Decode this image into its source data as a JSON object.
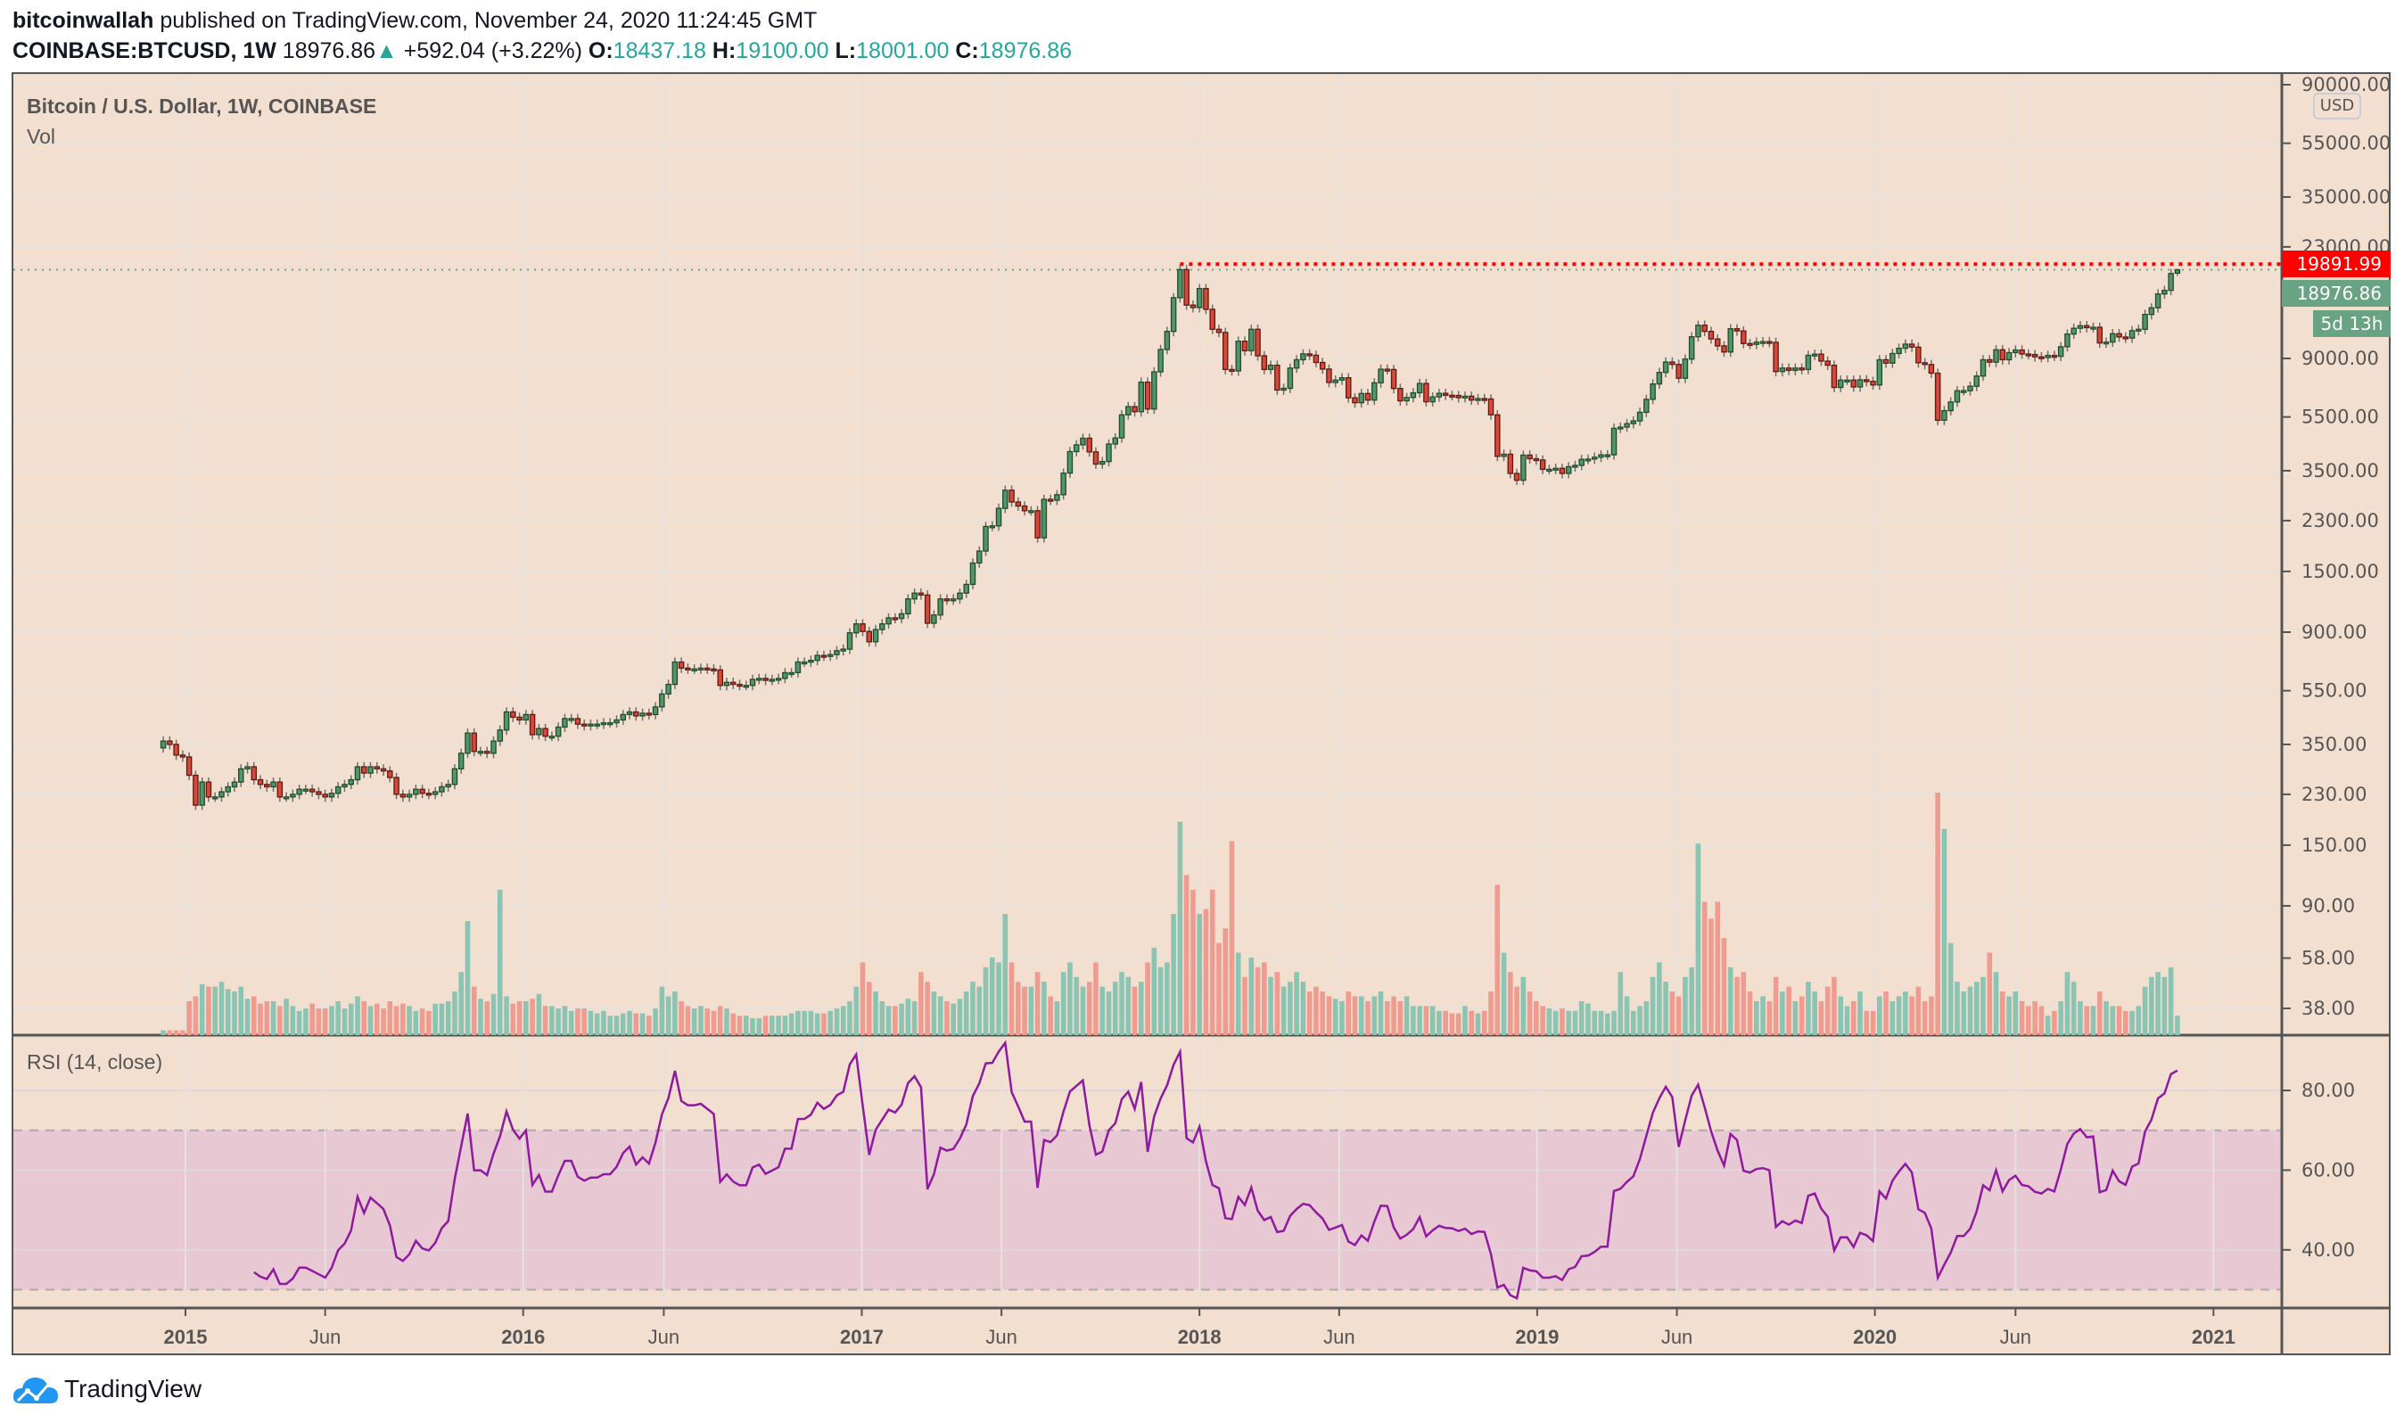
{
  "header": {
    "author": "bitcoinwallah",
    "published": "published on TradingView.com, November 24, 2020 11:24:45 GMT",
    "symbol": "COINBASE:BTCUSD, 1W",
    "last": "18976.86",
    "change": "+592.04 (+3.22%)",
    "o_label": "O:",
    "o": "18437.18",
    "h_label": "H:",
    "h": "19100.00",
    "l_label": "L:",
    "l": "18001.00",
    "c_label": "C:",
    "c": "18976.86"
  },
  "legend": {
    "title": "Bitcoin / U.S. Dollar, 1W, COINBASE",
    "volume": "Vol",
    "rsi": "RSI (14, close)"
  },
  "price_axis": {
    "currency": "USD",
    "ath_label": "19891.99",
    "last_label": "18976.86",
    "countdown": "5d 13h"
  },
  "footer": {
    "brand": "TradingView"
  },
  "colors": {
    "background": "#f2dfcf",
    "up": "#53946a",
    "up_border": "#1e4d2b",
    "down": "#d8483a",
    "down_border": "#5c1a10",
    "vol_up": "#8cc4b4",
    "vol_down": "#ef9b90",
    "rsi_line": "#8e1b9e",
    "rsi_band": "#e8c8d2",
    "ath_line": "#ff0000",
    "last_line": "#6aa383"
  },
  "chart_data": [
    {
      "type": "candlestick",
      "title": "Bitcoin / U.S. Dollar, 1W, COINBASE",
      "scale": "log",
      "ylim": [
        30,
        100000
      ],
      "y_ticks": [
        90000,
        55000,
        35000,
        23000,
        9000,
        5500,
        3500,
        2300,
        1500,
        900,
        550,
        350,
        230,
        150,
        90,
        58,
        38
      ],
      "y_tick_labels": [
        "90000.00",
        "55000.00",
        "35000.00",
        "23000.00",
        "9000.00",
        "5500.00",
        "3500.00",
        "2300.00",
        "1500.00",
        "900.00",
        "550.00",
        "350.00",
        "230.00",
        "150.00",
        "90.00",
        "58.00",
        "38.00"
      ],
      "x_ticks": [
        {
          "label": "2015",
          "date": "2015-01-01",
          "major": true
        },
        {
          "label": "Jun",
          "date": "2015-06-01"
        },
        {
          "label": "2016",
          "date": "2016-01-01",
          "major": true
        },
        {
          "label": "Jun",
          "date": "2016-06-01"
        },
        {
          "label": "2017",
          "date": "2017-01-01",
          "major": true
        },
        {
          "label": "Jun",
          "date": "2017-06-01"
        },
        {
          "label": "2018",
          "date": "2018-01-01",
          "major": true
        },
        {
          "label": "Jun",
          "date": "2018-06-01"
        },
        {
          "label": "2019",
          "date": "2019-01-01",
          "major": true
        },
        {
          "label": "Jun",
          "date": "2019-06-01"
        },
        {
          "label": "2020",
          "date": "2020-01-01",
          "major": true
        },
        {
          "label": "Jun",
          "date": "2020-06-01"
        },
        {
          "label": "2021",
          "date": "2021-01-01",
          "major": true
        }
      ],
      "first_week": "2014-12-08",
      "all_time_high": 19891.99,
      "last_candle": {
        "open": 18437.18,
        "high": 19100.0,
        "low": 18001.0,
        "close": 18976.86
      },
      "weekly_close": [
        360,
        350,
        320,
        315,
        270,
        210,
        255,
        225,
        225,
        235,
        245,
        255,
        285,
        290,
        260,
        250,
        245,
        255,
        225,
        225,
        230,
        240,
        240,
        235,
        230,
        225,
        232,
        245,
        250,
        260,
        290,
        275,
        290,
        285,
        280,
        265,
        230,
        225,
        230,
        240,
        232,
        230,
        235,
        245,
        250,
        285,
        325,
        385,
        330,
        330,
        325,
        360,
        395,
        460,
        440,
        430,
        450,
        380,
        400,
        375,
        375,
        405,
        435,
        435,
        415,
        410,
        415,
        415,
        420,
        420,
        430,
        450,
        460,
        445,
        455,
        450,
        480,
        535,
        580,
        700,
        665,
        660,
        660,
        665,
        660,
        655,
        575,
        590,
        580,
        575,
        575,
        605,
        610,
        600,
        605,
        610,
        640,
        640,
        700,
        700,
        710,
        740,
        735,
        745,
        770,
        780,
        895,
        965,
        905,
        830,
        920,
        965,
        1015,
        1010,
        1050,
        1190,
        1250,
        1230,
        970,
        1040,
        1190,
        1180,
        1190,
        1250,
        1345,
        1610,
        1780,
        2190,
        2200,
        2550,
        2970,
        2690,
        2600,
        2500,
        2500,
        1990,
        2750,
        2730,
        2860,
        3430,
        4110,
        4350,
        4600,
        4100,
        3700,
        3780,
        4380,
        4610,
        5600,
        6000,
        5750,
        7370,
        5880,
        8040,
        9700,
        11300,
        15000,
        19000,
        14100,
        13800,
        16200,
        13600,
        11500,
        11200,
        8200,
        8100,
        10400,
        9600,
        11500,
        9200,
        8200,
        8500,
        6900,
        7000,
        8300,
        8900,
        9350,
        9250,
        8700,
        8230,
        7350,
        7500,
        7650,
        6460,
        6200,
        6700,
        6340,
        7330,
        8220,
        8200,
        6990,
        6300,
        6480,
        6740,
        7290,
        6250,
        6510,
        6710,
        6600,
        6590,
        6470,
        6550,
        6340,
        6420,
        6400,
        5600,
        3950,
        4020,
        3420,
        3230,
        3990,
        3870,
        3830,
        3540,
        3540,
        3570,
        3420,
        3620,
        3660,
        3850,
        3860,
        3920,
        4000,
        4000,
        5000,
        5050,
        5200,
        5320,
        5720,
        6380,
        7260,
        8000,
        8730,
        8560,
        7620,
        8950,
        10800,
        11900,
        11300,
        10600,
        10000,
        9500,
        11550,
        11340,
        10200,
        10130,
        10320,
        10370,
        10300,
        8060,
        8300,
        8140,
        8300,
        8200,
        9240,
        9330,
        8800,
        8500,
        7050,
        7500,
        7500,
        7080,
        7520,
        7420,
        7200,
        8900,
        8650,
        9380,
        9800,
        10150,
        9900,
        8680,
        8550,
        7950,
        5350,
        5800,
        6240,
        6860,
        6860,
        7120,
        7760,
        8900,
        8720,
        9680,
        8900,
        9450,
        9660,
        9340,
        9300,
        9120,
        9070,
        9230,
        9160,
        9930,
        11050,
        11600,
        11850,
        11660,
        11700,
        10250,
        10330,
        11080,
        10780,
        10680,
        11370,
        11500,
        13030,
        13780,
        15480,
        15960,
        18384.82,
        18976.86
      ]
    },
    {
      "type": "bar",
      "title": "Vol",
      "values_relative": [
        2,
        2,
        2,
        2,
        14,
        16,
        21,
        20,
        20,
        22,
        19,
        18,
        20,
        15,
        16,
        13,
        14,
        14,
        12,
        15,
        12,
        10,
        11,
        13,
        11,
        11,
        12,
        14,
        11,
        13,
        16,
        14,
        12,
        13,
        11,
        14,
        12,
        13,
        12,
        10,
        11,
        10,
        13,
        13,
        14,
        18,
        26,
        47,
        20,
        15,
        14,
        17,
        60,
        16,
        13,
        14,
        14,
        15,
        17,
        12,
        12,
        11,
        12,
        10,
        11,
        11,
        10,
        9,
        10,
        8,
        8,
        9,
        10,
        9,
        9,
        8,
        11,
        20,
        16,
        18,
        14,
        12,
        11,
        12,
        11,
        10,
        12,
        11,
        9,
        8,
        8,
        7,
        7,
        8,
        8,
        8,
        8,
        9,
        10,
        10,
        10,
        9,
        9,
        10,
        11,
        12,
        14,
        20,
        30,
        22,
        18,
        14,
        12,
        12,
        13,
        15,
        14,
        26,
        22,
        18,
        16,
        14,
        13,
        15,
        18,
        22,
        20,
        28,
        32,
        30,
        50,
        30,
        22,
        20,
        20,
        26,
        22,
        16,
        14,
        26,
        30,
        24,
        20,
        22,
        30,
        20,
        18,
        22,
        26,
        24,
        20,
        22,
        30,
        36,
        28,
        30,
        50,
        88,
        66,
        60,
        50,
        52,
        60,
        38,
        44,
        80,
        34,
        24,
        32,
        28,
        30,
        24,
        26,
        20,
        22,
        26,
        22,
        18,
        20,
        18,
        16,
        15,
        14,
        18,
        16,
        16,
        14,
        16,
        18,
        14,
        16,
        14,
        16,
        12,
        12,
        12,
        12,
        10,
        10,
        9,
        9,
        12,
        10,
        9,
        10,
        18,
        62,
        34,
        26,
        20,
        24,
        18,
        14,
        12,
        11,
        10,
        11,
        10,
        10,
        14,
        13,
        10,
        10,
        9,
        10,
        26,
        16,
        10,
        12,
        14,
        24,
        30,
        22,
        18,
        16,
        24,
        28,
        79,
        55,
        48,
        55,
        40,
        28,
        24,
        26,
        18,
        14,
        16,
        14,
        24,
        18,
        20,
        14,
        16,
        22,
        18,
        14,
        20,
        24,
        16,
        12,
        14,
        18,
        10,
        10,
        16,
        18,
        14,
        16,
        18,
        16,
        20,
        14,
        16,
        100,
        85,
        38,
        22,
        18,
        20,
        22,
        24,
        34,
        26,
        18,
        16,
        18,
        14,
        12,
        14,
        12,
        8,
        10,
        14,
        26,
        22,
        14,
        12,
        12,
        18,
        14,
        12,
        12,
        10,
        10,
        12,
        20,
        24,
        26,
        24,
        28,
        8
      ]
    },
    {
      "type": "line",
      "title": "RSI (14, close)",
      "source": "weekly_close",
      "period": 14,
      "ylim": [
        25,
        92
      ],
      "y_ticks": [
        80,
        60,
        40
      ],
      "y_tick_labels": [
        "80.00",
        "60.00",
        "40.00"
      ],
      "band": [
        30,
        70
      ]
    }
  ]
}
